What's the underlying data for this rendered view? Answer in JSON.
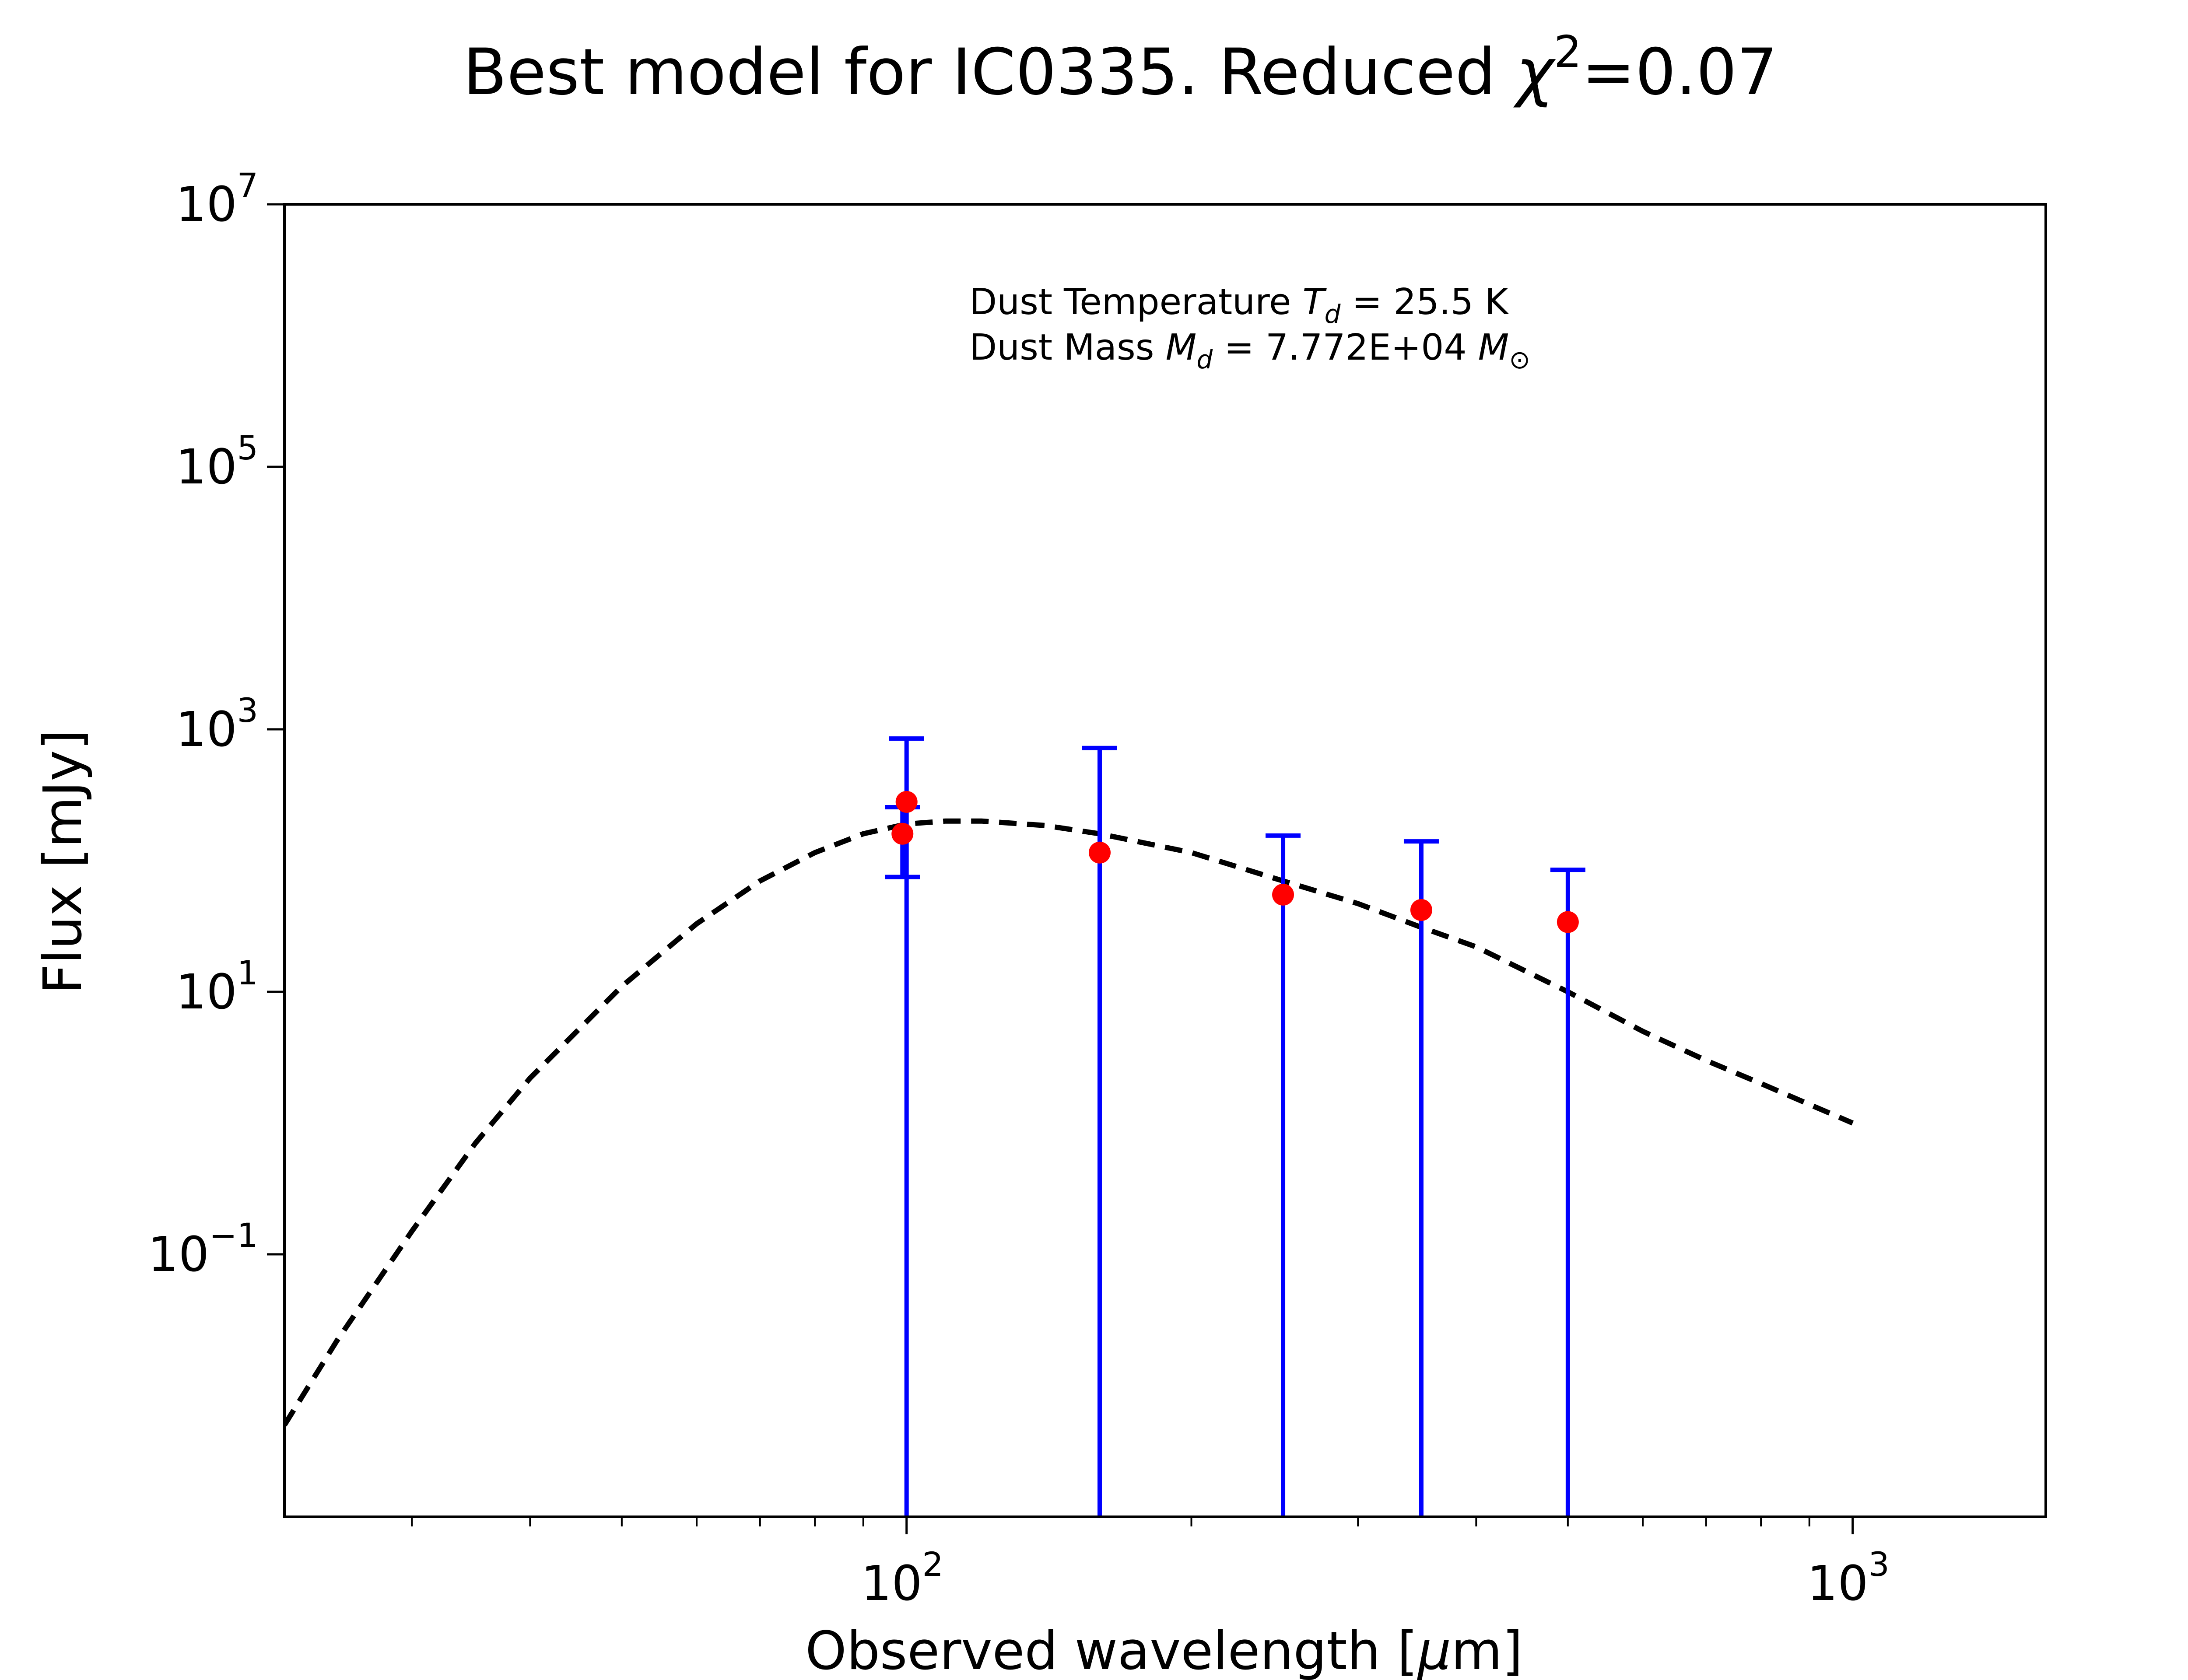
{
  "chart_data": {
    "type": "scatter",
    "title": {
      "prefix": "Best model for IC0335. Reduced ",
      "symbol": "χ",
      "exponent": "2",
      "suffix": "=0.07"
    },
    "xlabel": {
      "prefix": "Observed wavelength [",
      "unit_symbol": "μ",
      "unit_rest": "m]"
    },
    "ylabel": "Flux [mJy]",
    "x_scale": "log",
    "y_scale": "log",
    "xlim": [
      22,
      1600
    ],
    "ylim": [
      0.001,
      10000000
    ],
    "x_ticks": [
      {
        "value": 100,
        "base": "10",
        "exp": "2"
      },
      {
        "value": 1000,
        "base": "10",
        "exp": "3"
      }
    ],
    "y_ticks": [
      {
        "value": 0.1,
        "base": "10",
        "exp": "−1"
      },
      {
        "value": 10,
        "base": "10",
        "exp": "1"
      },
      {
        "value": 1000,
        "base": "10",
        "exp": "3"
      },
      {
        "value": 100000,
        "base": "10",
        "exp": "5"
      },
      {
        "value": 10000000,
        "base": "10",
        "exp": "7"
      }
    ],
    "annotation": {
      "line1": {
        "prefix": "Dust Temperature ",
        "sym": "T",
        "sub": "d",
        "suffix": " = 25.5 K"
      },
      "line2": {
        "prefix": "Dust Mass ",
        "sym": "M",
        "sub": "d",
        "middle": " = 7.772E+04 ",
        "unit_sym": "M",
        "unit_sub": "⊙"
      }
    },
    "series": [
      {
        "style": "points-with-errorbars",
        "marker_color": "#ff0000",
        "errorbar_color": "#0000ff",
        "points": [
          {
            "x": 100,
            "y": 280,
            "y_low": 0.001,
            "y_high": 850
          },
          {
            "x": 99,
            "y": 160,
            "y_low": 75,
            "y_high": 255
          },
          {
            "x": 160,
            "y": 115,
            "y_low": 0.001,
            "y_high": 720
          },
          {
            "x": 250,
            "y": 55,
            "y_low": 0.001,
            "y_high": 155
          },
          {
            "x": 350,
            "y": 42,
            "y_low": 0.001,
            "y_high": 140
          },
          {
            "x": 500,
            "y": 34,
            "y_low": 0.001,
            "y_high": 85
          }
        ]
      },
      {
        "style": "dashed-line",
        "line_color": "#000000",
        "points": [
          {
            "x": 22,
            "y": 0.005
          },
          {
            "x": 25,
            "y": 0.022
          },
          {
            "x": 30,
            "y": 0.15
          },
          {
            "x": 35,
            "y": 0.7
          },
          {
            "x": 40,
            "y": 2.2
          },
          {
            "x": 50,
            "y": 11
          },
          {
            "x": 60,
            "y": 33
          },
          {
            "x": 70,
            "y": 70
          },
          {
            "x": 80,
            "y": 115
          },
          {
            "x": 90,
            "y": 160
          },
          {
            "x": 100,
            "y": 190
          },
          {
            "x": 110,
            "y": 200
          },
          {
            "x": 120,
            "y": 200
          },
          {
            "x": 140,
            "y": 185
          },
          {
            "x": 160,
            "y": 160
          },
          {
            "x": 200,
            "y": 115
          },
          {
            "x": 250,
            "y": 70
          },
          {
            "x": 300,
            "y": 47
          },
          {
            "x": 350,
            "y": 31
          },
          {
            "x": 400,
            "y": 22
          },
          {
            "x": 500,
            "y": 10
          },
          {
            "x": 600,
            "y": 5
          },
          {
            "x": 700,
            "y": 3
          },
          {
            "x": 800,
            "y": 2
          },
          {
            "x": 1000,
            "y": 1.0
          }
        ]
      }
    ]
  }
}
